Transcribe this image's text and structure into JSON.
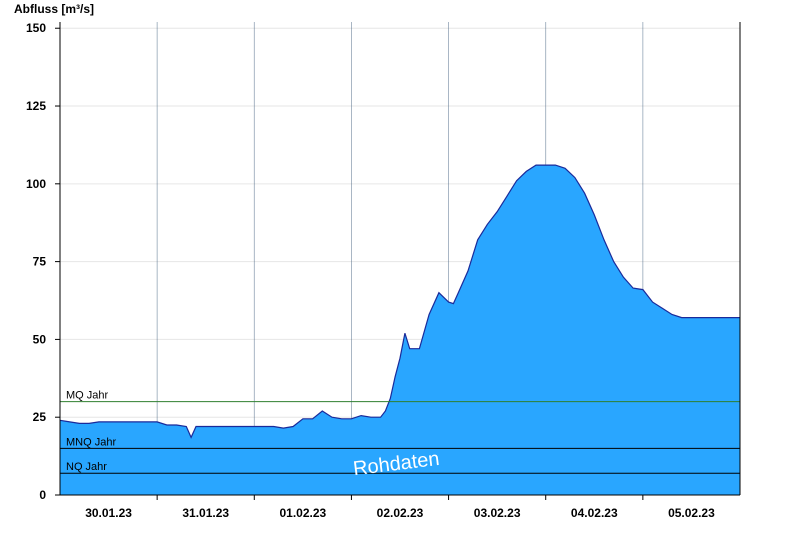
{
  "chart_data": {
    "type": "area",
    "title": "",
    "ylabel": "Abfluss [m³/s]",
    "xlabel": "",
    "ylim": [
      0,
      152
    ],
    "y_ticks": [
      0,
      25,
      50,
      75,
      100,
      125,
      150
    ],
    "x_range_days": [
      0,
      7
    ],
    "x_ticks": [
      {
        "label": "30.01.23",
        "day": 0.5
      },
      {
        "label": "31.01.23",
        "day": 1.5
      },
      {
        "label": "01.02.23",
        "day": 2.5
      },
      {
        "label": "02.02.23",
        "day": 3.5
      },
      {
        "label": "03.02.23",
        "day": 4.5
      },
      {
        "label": "04.02.23",
        "day": 5.5
      },
      {
        "label": "05.02.23",
        "day": 6.5
      }
    ],
    "day_boundaries": [
      1,
      2,
      3,
      4,
      5,
      6
    ],
    "grid": true,
    "series": [
      {
        "name": "",
        "x_days": [
          0,
          0.1,
          0.2,
          0.3,
          0.4,
          0.5,
          0.6,
          0.7,
          0.8,
          0.9,
          1.0,
          1.1,
          1.2,
          1.3,
          1.35,
          1.4,
          1.5,
          1.6,
          1.7,
          1.8,
          1.9,
          2.0,
          2.1,
          2.2,
          2.3,
          2.4,
          2.5,
          2.6,
          2.7,
          2.8,
          2.9,
          3.0,
          3.1,
          3.2,
          3.3,
          3.35,
          3.4,
          3.45,
          3.5,
          3.55,
          3.6,
          3.7,
          3.8,
          3.9,
          4.0,
          4.05,
          4.1,
          4.2,
          4.3,
          4.4,
          4.5,
          4.6,
          4.7,
          4.8,
          4.9,
          5.0,
          5.1,
          5.2,
          5.3,
          5.4,
          5.5,
          5.6,
          5.7,
          5.8,
          5.9,
          6.0,
          6.1,
          6.2,
          6.3,
          6.4,
          6.5,
          6.6,
          6.7,
          6.8,
          6.9,
          7.0
        ],
        "values": [
          24,
          23.5,
          23,
          23,
          23.5,
          23.5,
          23.5,
          23.5,
          23.5,
          23.5,
          23.5,
          22.5,
          22.5,
          22,
          18.5,
          22,
          22,
          22,
          22,
          22,
          22,
          22,
          22,
          22,
          21.5,
          22,
          24.5,
          24.5,
          27,
          25,
          24.5,
          24.5,
          25.5,
          25,
          25,
          27,
          31,
          38,
          44,
          52,
          47,
          47,
          58,
          65,
          62,
          61.5,
          65,
          72,
          82,
          87,
          91,
          96,
          101,
          104,
          106,
          106,
          106,
          105,
          102,
          97,
          90,
          82,
          75,
          70,
          66.5,
          66,
          62,
          60,
          58,
          57,
          57,
          57,
          57,
          57,
          57,
          57
        ],
        "color": "#29a6ff"
      }
    ],
    "reference_lines": [
      {
        "label": "MQ Jahr",
        "value": 30,
        "color": "#2f7f2f"
      },
      {
        "label": "MNQ Jahr",
        "value": 15,
        "color": "#000000"
      },
      {
        "label": "NQ Jahr",
        "value": 7,
        "color": "#000000"
      }
    ],
    "watermark": "Rohdaten"
  }
}
